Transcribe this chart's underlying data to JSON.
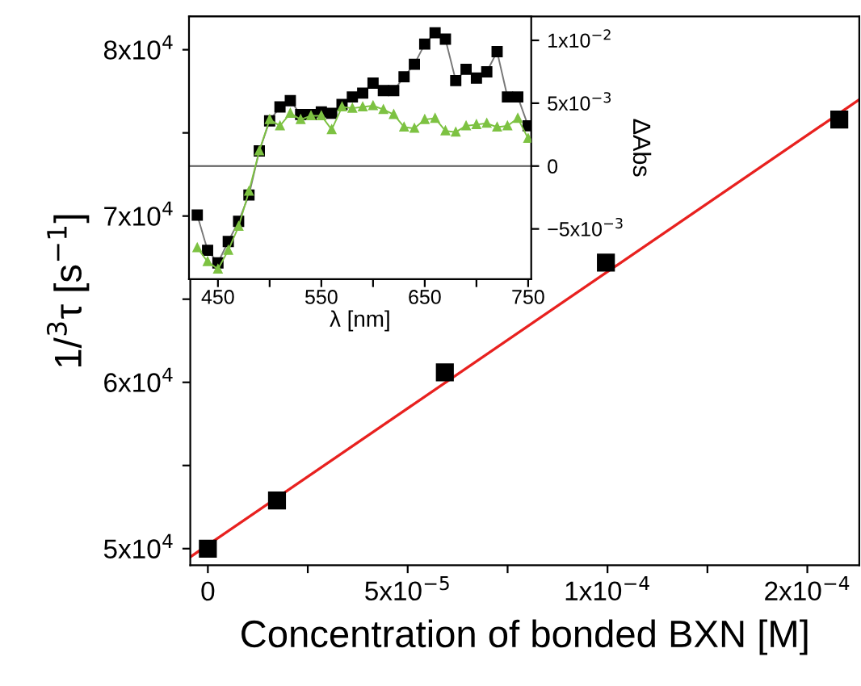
{
  "chart_data": [
    {
      "type": "scatter",
      "xlabel": "Concentration of bonded BXN [M]",
      "ylabel": "1/$^{3}$τ [s$^{−1}$]",
      "xlim": [
        -4.4e-06,
        0.000163
      ],
      "ylim": [
        49000,
        82000
      ],
      "xticks": [
        {
          "value": 0,
          "label": "0"
        },
        {
          "value": 2.5e-05,
          "label": null
        },
        {
          "value": 5e-05,
          "label": "5x10$^{−5}$"
        },
        {
          "value": 7.5e-05,
          "label": null
        },
        {
          "value": 0.0001,
          "label": "1x10$^{−4}$"
        },
        {
          "value": 0.000125,
          "label": null
        },
        {
          "value": 0.00015,
          "label": "2x10$^{−4}$"
        }
      ],
      "yticks": [
        {
          "value": 50000,
          "label": "5x10$^{4}$"
        },
        {
          "value": 55000,
          "label": null
        },
        {
          "value": 60000,
          "label": "6x10$^{4}$"
        },
        {
          "value": 65000,
          "label": null
        },
        {
          "value": 70000,
          "label": "7x10$^{4}$"
        },
        {
          "value": 75000,
          "label": null
        },
        {
          "value": 80000,
          "label": "8x10$^{4}$"
        }
      ],
      "series": [
        {
          "type": "scatter",
          "color": "#000000",
          "marker": "square",
          "x": [
            0,
            1.73e-05,
            5.93e-05,
            9.96e-05,
            0.000158
          ],
          "values": [
            50000,
            52900,
            60600,
            67200,
            75800
          ]
        },
        {
          "type": "line",
          "color": "#e8211f",
          "marker": "none",
          "x": [
            -4.4e-06,
            0.000163
          ],
          "values": [
            49500,
            77000
          ]
        }
      ]
    },
    {
      "type": "line",
      "xlabel": "λ [nm]",
      "ylabel": "ΔAbs",
      "xlim": [
        422,
        753
      ],
      "ylim": [
        -0.009,
        0.0119
      ],
      "xticks": [
        450,
        {
          "value": 500,
          "label": null
        },
        550,
        {
          "value": 600,
          "label": null
        },
        650,
        {
          "value": 700,
          "label": null
        },
        750
      ],
      "yticks": [
        {
          "value": -0.005,
          "label": "−5x10$^{−3}$"
        },
        {
          "value": 0,
          "label": "0"
        },
        {
          "value": 0.005,
          "label": "5x10$^{−3}$"
        },
        {
          "value": 0.01,
          "label": "1x10$^{−2}$"
        }
      ],
      "ref_lines": [
        {
          "axis": "y",
          "value": 0,
          "color": "#555555"
        }
      ],
      "x": [
        430,
        440,
        450,
        460,
        470,
        480,
        490,
        500,
        510,
        520,
        530,
        540,
        550,
        560,
        570,
        580,
        590,
        600,
        610,
        620,
        630,
        640,
        650,
        660,
        670,
        680,
        690,
        700,
        710,
        720,
        730,
        740,
        750
      ],
      "series": [
        {
          "color": "#000000",
          "marker": "square",
          "values": [
            -0.0039,
            -0.0067,
            -0.0077,
            -0.006,
            -0.0044,
            -0.0023,
            0.0012,
            0.0036,
            0.0047,
            0.0052,
            0.0041,
            0.0041,
            0.0043,
            0.0042,
            0.0049,
            0.0055,
            0.0058,
            0.0066,
            0.006,
            0.006,
            0.0071,
            0.0081,
            0.0097,
            0.0106,
            0.0101,
            0.0068,
            0.0077,
            0.007,
            0.0075,
            0.0091,
            0.0055,
            0.0055,
            0.0032
          ]
        },
        {
          "color": "#7dc242",
          "marker": "triangle",
          "values": [
            -0.0065,
            -0.0076,
            -0.0082,
            -0.0067,
            -0.0048,
            -0.002,
            0.0012,
            0.0037,
            0.0032,
            0.0042,
            0.0037,
            0.004,
            0.004,
            0.0029,
            0.0047,
            0.0046,
            0.0047,
            0.0048,
            0.0045,
            0.0041,
            0.0031,
            0.003,
            0.0037,
            0.0038,
            0.0028,
            0.0027,
            0.0032,
            0.0033,
            0.0034,
            0.0031,
            0.0032,
            0.0038,
            0.0022
          ]
        }
      ]
    }
  ]
}
